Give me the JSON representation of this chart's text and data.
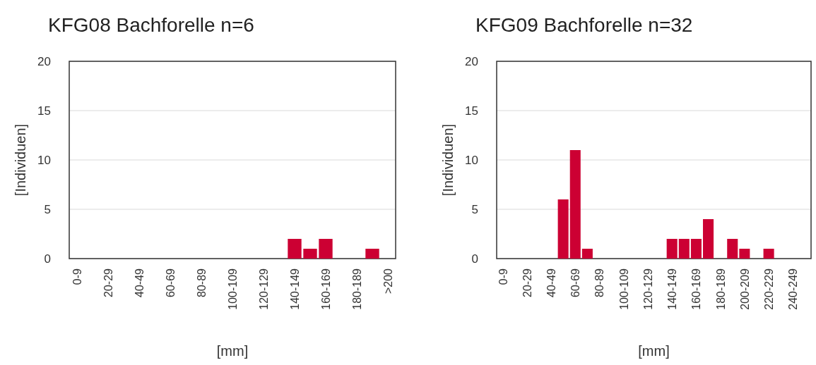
{
  "chart_data": [
    {
      "type": "bar",
      "title": "KFG08 Bachforelle n=6",
      "xlabel": "[mm]",
      "ylabel": "[Individuen]",
      "categories": [
        "0-9",
        null,
        "20-29",
        null,
        "40-49",
        null,
        "60-69",
        null,
        "80-89",
        null,
        "100-109",
        null,
        "120-129",
        null,
        "140-149",
        null,
        "160-169",
        null,
        "180-189",
        null,
        ">200"
      ],
      "values": [
        0,
        0,
        0,
        0,
        0,
        0,
        0,
        0,
        0,
        0,
        0,
        0,
        0,
        0,
        2,
        1,
        2,
        0,
        0,
        1,
        0
      ],
      "color": "#cc0033",
      "ylim": [
        0,
        20
      ],
      "yticks": [
        0,
        5,
        10,
        15,
        20
      ],
      "grid": "y"
    },
    {
      "type": "bar",
      "title": "KFG09 Bachforelle n=32",
      "xlabel": "[mm]",
      "ylabel": "[Individuen]",
      "categories": [
        "0-9",
        null,
        "20-29",
        null,
        "40-49",
        null,
        "60-69",
        null,
        "80-89",
        null,
        "100-109",
        null,
        "120-129",
        null,
        "140-149",
        null,
        "160-169",
        null,
        "180-189",
        null,
        "200-209",
        null,
        "220-229",
        null,
        "240-249",
        null
      ],
      "values": [
        0,
        0,
        0,
        0,
        0,
        6,
        11,
        1,
        0,
        0,
        0,
        0,
        0,
        0,
        2,
        2,
        2,
        4,
        0,
        2,
        1,
        0,
        1,
        0,
        0,
        0
      ],
      "color": "#cc0033",
      "ylim": [
        0,
        20
      ],
      "yticks": [
        0,
        5,
        10,
        15,
        20
      ],
      "grid": "y"
    }
  ]
}
